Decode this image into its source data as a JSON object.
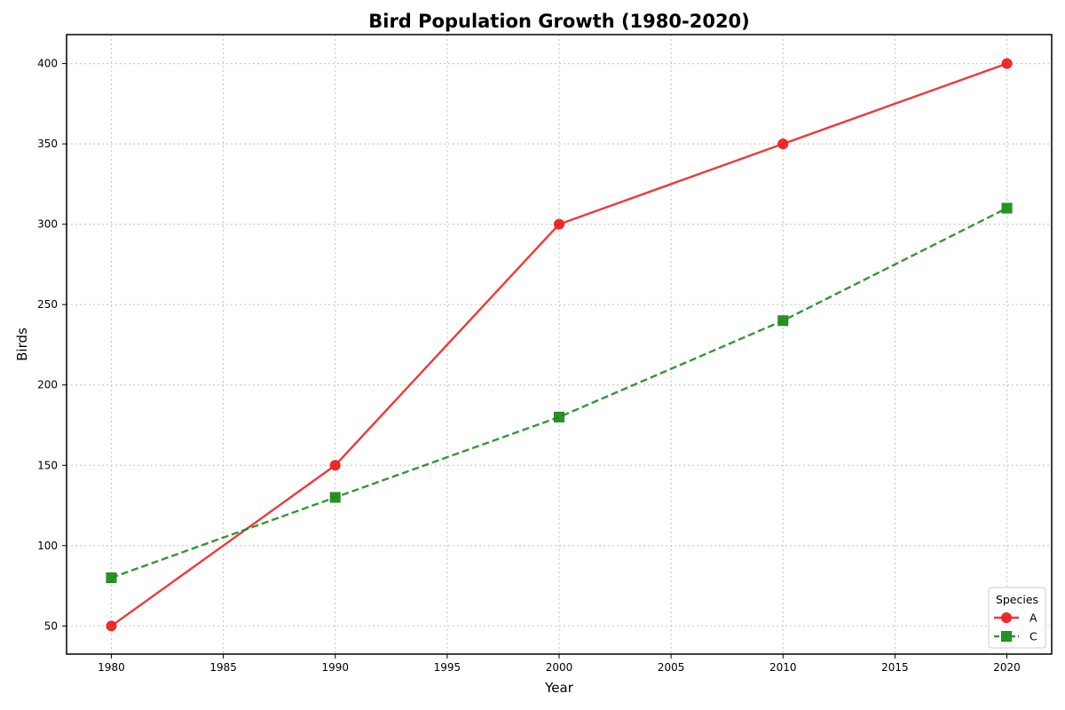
{
  "chart_data": {
    "type": "line",
    "title": "Bird Population Growth (1980-2020)",
    "xlabel": "Year",
    "ylabel": "Birds",
    "xlim": [
      1978,
      2022
    ],
    "ylim": [
      32.5,
      418
    ],
    "x_ticks": [
      1980,
      1985,
      1990,
      1995,
      2000,
      2005,
      2010,
      2015,
      2020
    ],
    "y_ticks": [
      50,
      100,
      150,
      200,
      250,
      300,
      350,
      400
    ],
    "grid": true,
    "legend": {
      "title": "Species",
      "placement": "bottom-right"
    },
    "series": [
      {
        "name": "A",
        "x": [
          1980,
          1990,
          2000,
          2010,
          2020
        ],
        "values": [
          50,
          150,
          300,
          350,
          400
        ],
        "color": "#ee2222",
        "marker": "circle",
        "line_style": "solid"
      },
      {
        "name": "C",
        "x": [
          1980,
          1990,
          2000,
          2010,
          2020
        ],
        "values": [
          80,
          130,
          180,
          240,
          310
        ],
        "color": "#1e8c1e",
        "marker": "square",
        "line_style": "dashed"
      }
    ]
  }
}
